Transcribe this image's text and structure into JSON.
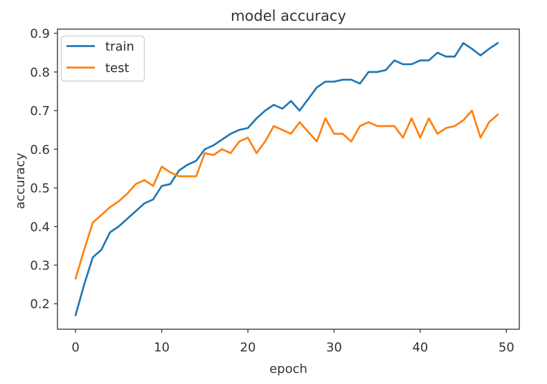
{
  "chart_data": {
    "type": "line",
    "title": "model accuracy",
    "xlabel": "epoch",
    "ylabel": "accuracy",
    "x": [
      0,
      1,
      2,
      3,
      4,
      5,
      6,
      7,
      8,
      9,
      10,
      11,
      12,
      13,
      14,
      15,
      16,
      17,
      18,
      19,
      20,
      21,
      22,
      23,
      24,
      25,
      26,
      27,
      28,
      29,
      30,
      31,
      32,
      33,
      34,
      35,
      36,
      37,
      38,
      39,
      40,
      41,
      42,
      43,
      44,
      45,
      46,
      47,
      48,
      49
    ],
    "series": [
      {
        "name": "train",
        "color": "#1f77b4",
        "values": [
          0.17,
          0.25,
          0.32,
          0.34,
          0.385,
          0.4,
          0.42,
          0.44,
          0.46,
          0.47,
          0.505,
          0.51,
          0.545,
          0.56,
          0.57,
          0.6,
          0.61,
          0.625,
          0.64,
          0.65,
          0.655,
          0.68,
          0.7,
          0.715,
          0.705,
          0.725,
          0.7,
          0.73,
          0.76,
          0.775,
          0.775,
          0.78,
          0.78,
          0.77,
          0.8,
          0.8,
          0.805,
          0.83,
          0.82,
          0.82,
          0.83,
          0.83,
          0.85,
          0.84,
          0.84,
          0.875,
          0.86,
          0.843,
          0.86,
          0.875
        ]
      },
      {
        "name": "test",
        "color": "#ff7f0e",
        "values": [
          0.265,
          0.34,
          0.41,
          0.43,
          0.45,
          0.465,
          0.485,
          0.51,
          0.52,
          0.505,
          0.555,
          0.54,
          0.53,
          0.53,
          0.53,
          0.59,
          0.585,
          0.6,
          0.59,
          0.62,
          0.63,
          0.59,
          0.62,
          0.66,
          0.65,
          0.64,
          0.67,
          0.645,
          0.62,
          0.68,
          0.64,
          0.64,
          0.62,
          0.66,
          0.67,
          0.66,
          0.66,
          0.66,
          0.63,
          0.68,
          0.63,
          0.68,
          0.64,
          0.655,
          0.66,
          0.675,
          0.7,
          0.63,
          0.67,
          0.69
        ]
      }
    ],
    "xticks": [
      0,
      10,
      20,
      30,
      40,
      50
    ],
    "yticks": [
      0.2,
      0.3,
      0.4,
      0.5,
      0.6,
      0.7,
      0.8,
      0.9
    ],
    "xlim": [
      -2.1,
      51.5
    ],
    "ylim": [
      0.134,
      0.911
    ],
    "grid": false,
    "legend_position": "upper left",
    "axis_color": "#3c3c3c",
    "text_color": "#333333",
    "background_color": "#ffffff"
  }
}
